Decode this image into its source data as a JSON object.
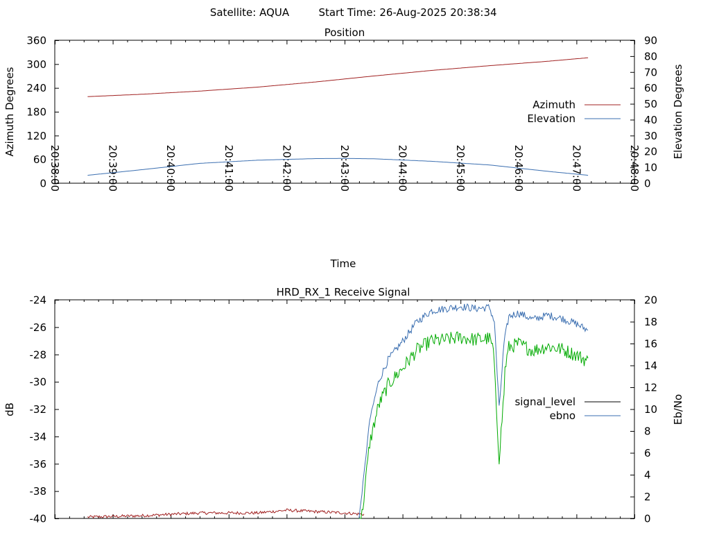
{
  "header": {
    "satellite_label": "Satellite: AQUA",
    "start_label": "Start Time: 26-Aug-2025 20:38:34"
  },
  "colors": {
    "azimuth": "#a02020",
    "elevation": "#3a6eb0",
    "signal_level": "#000000",
    "signal_level_trace": "#a02020",
    "ebno": "#3a6eb0",
    "db_trace": "#00aa00"
  },
  "chart_data": [
    {
      "type": "line",
      "title": "Position",
      "xlabel": "Time",
      "ylabel": "Azimuth Degrees",
      "y2label": "Elevation Degrees",
      "xlim": [
        "20:38:00",
        "20:48:00"
      ],
      "xticks": [
        "20:38:00",
        "20:39:00",
        "20:40:00",
        "20:41:00",
        "20:42:00",
        "20:43:00",
        "20:44:00",
        "20:45:00",
        "20:46:00",
        "20:47:00",
        "20:48:00"
      ],
      "ylim": [
        0,
        360
      ],
      "yticks": [
        0,
        60,
        120,
        180,
        240,
        300,
        360
      ],
      "y2lim": [
        0,
        90
      ],
      "y2ticks": [
        0,
        10,
        20,
        30,
        40,
        50,
        60,
        70,
        80,
        90
      ],
      "legend_position": "right",
      "grid": false,
      "series": [
        {
          "name": "Azimuth",
          "axis": "left",
          "x": [
            "20:38:34",
            "20:39:30",
            "20:40:30",
            "20:41:30",
            "20:42:30",
            "20:43:30",
            "20:44:30",
            "20:45:30",
            "20:46:30",
            "20:47:12"
          ],
          "values": [
            218,
            224,
            232,
            242,
            255,
            270,
            284,
            296,
            307,
            316
          ]
        },
        {
          "name": "Elevation",
          "axis": "right",
          "x": [
            "20:38:34",
            "20:39:30",
            "20:40:30",
            "20:41:30",
            "20:42:30",
            "20:43:00",
            "20:43:30",
            "20:44:30",
            "20:45:30",
            "20:46:30",
            "20:47:12"
          ],
          "values": [
            5,
            8.5,
            12.5,
            14.5,
            15.5,
            15.6,
            15.4,
            13.8,
            11.5,
            7.5,
            5
          ]
        }
      ]
    },
    {
      "type": "line",
      "title": "HRD_RX_1 Receive Signal",
      "xlabel": "",
      "ylabel": "dB",
      "y2label": "Eb/No",
      "xlim": [
        "20:38:00",
        "20:48:00"
      ],
      "ylim": [
        -40,
        -24
      ],
      "yticks": [
        -40,
        -38,
        -36,
        -34,
        -32,
        -30,
        -28,
        -26,
        -24
      ],
      "y2lim": [
        0,
        20
      ],
      "y2ticks": [
        0,
        2,
        4,
        6,
        8,
        10,
        12,
        14,
        16,
        18,
        20
      ],
      "legend_position": "right",
      "grid": false,
      "series": [
        {
          "name": "signal_level",
          "axis": "left",
          "x": [
            "20:38:34",
            "20:39:30",
            "20:40:30",
            "20:41:30",
            "20:42:00",
            "20:42:30",
            "20:43:00",
            "20:43:20"
          ],
          "values": [
            -39.9,
            -39.8,
            -39.6,
            -39.6,
            -39.4,
            -39.5,
            -39.6,
            -39.7
          ]
        },
        {
          "name": "ebno",
          "axis": "right",
          "x": [
            "20:43:15",
            "20:43:20",
            "20:43:26",
            "20:43:35",
            "20:43:45",
            "20:44:00",
            "20:44:15",
            "20:44:30",
            "20:44:45",
            "20:45:00",
            "20:45:15",
            "20:45:30",
            "20:45:35",
            "20:45:40",
            "20:45:45",
            "20:45:50",
            "20:46:00",
            "20:46:15",
            "20:46:30",
            "20:46:45",
            "20:47:00",
            "20:47:12"
          ],
          "values": [
            0,
            4,
            9,
            12.5,
            14.5,
            16.2,
            18,
            19,
            19.2,
            19.4,
            19.2,
            19.3,
            18,
            10,
            16,
            18.5,
            18.8,
            18.2,
            18.6,
            18.3,
            17.8,
            17.2
          ]
        }
      ]
    }
  ]
}
